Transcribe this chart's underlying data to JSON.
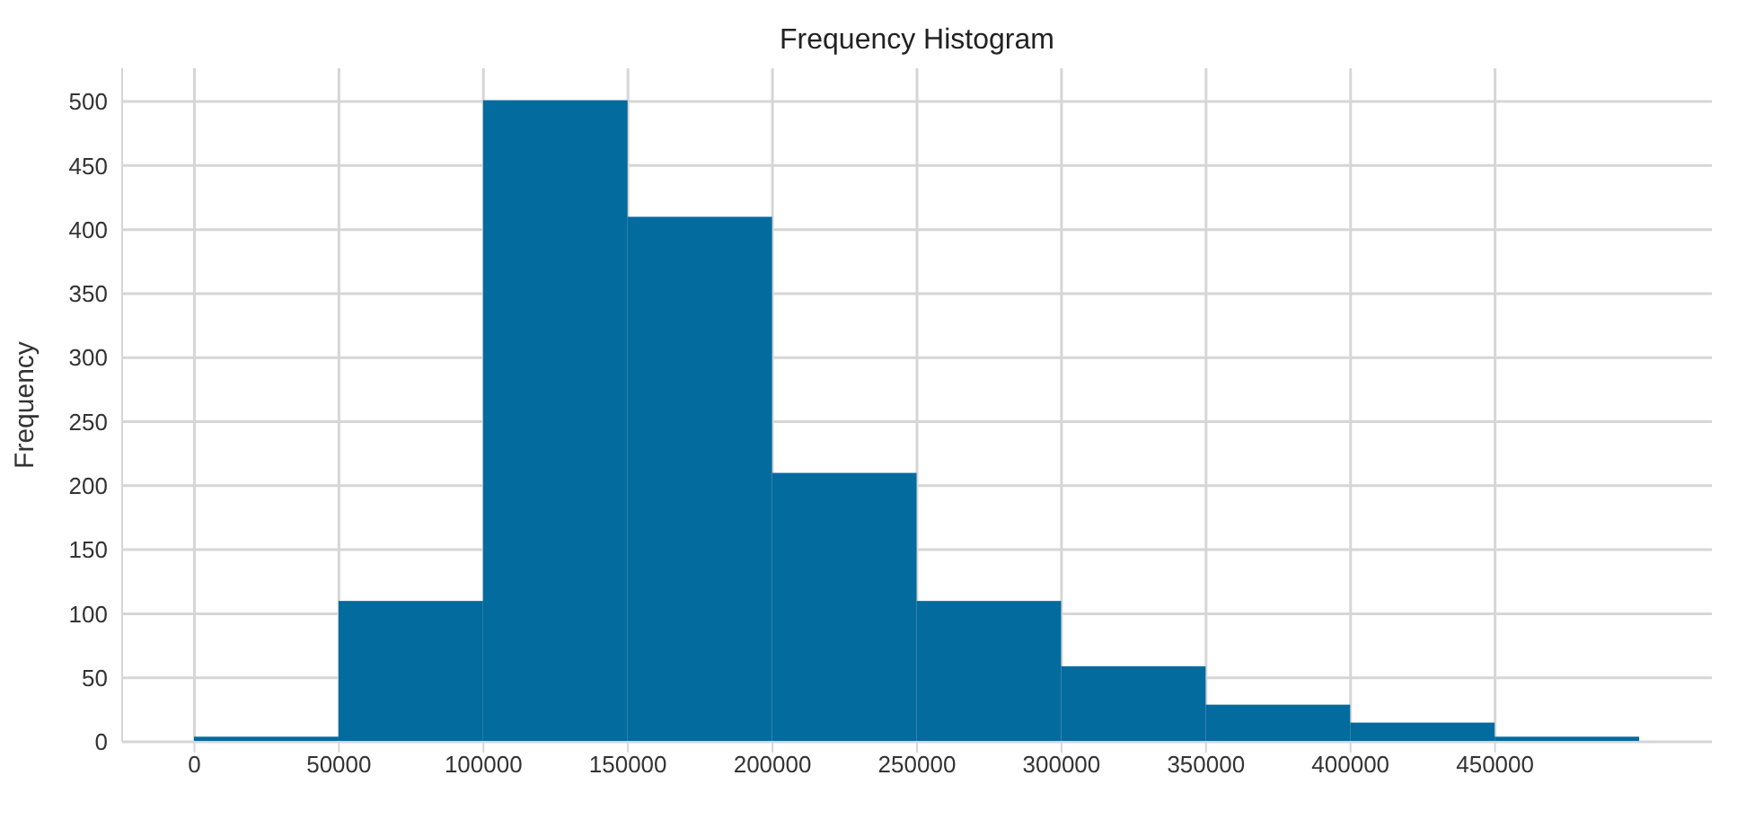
{
  "chart_data": {
    "type": "histogram",
    "title": "Frequency Histogram",
    "ylabel": "Frequency",
    "bins": [
      0,
      50000,
      100000,
      150000,
      200000,
      250000,
      300000,
      350000,
      400000,
      450000,
      500000
    ],
    "values": [
      4,
      110,
      501,
      410,
      210,
      110,
      59,
      29,
      15,
      4
    ],
    "color": "#036b9e",
    "xlim": [
      -25000,
      525000
    ],
    "xticks": [
      0,
      50000,
      100000,
      150000,
      200000,
      250000,
      300000,
      350000,
      400000,
      450000
    ],
    "ylim": [
      0,
      526
    ],
    "yticks": [
      0,
      50,
      100,
      150,
      200,
      250,
      300,
      350,
      400,
      450,
      500
    ],
    "grid": true
  }
}
